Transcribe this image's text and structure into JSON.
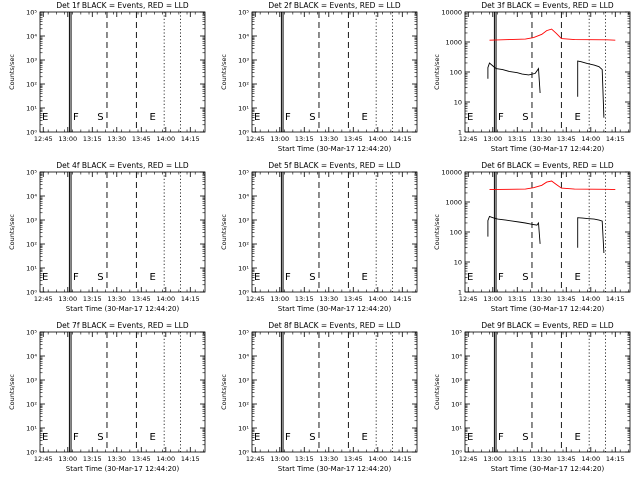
{
  "chart_data": [
    {
      "type": "line",
      "title": "Det 1f BLACK = Events, RED = LLD",
      "xlabel": "",
      "ylabel": "Counts/sec",
      "ylog": true,
      "yticks": [
        "10⁰",
        "10¹",
        "10²",
        "10³",
        "10⁴",
        "10⁵"
      ],
      "xticks": [
        "12:45",
        "13:00",
        "13:15",
        "13:30",
        "13:45",
        "14:00",
        "14:15"
      ],
      "event_labels": {
        "E_left": "E",
        "F": "F",
        "S": "S",
        "E_right": "E"
      },
      "series": []
    },
    {
      "type": "line",
      "title": "Det 2f BLACK = Events, RED = LLD",
      "xlabel": "Start Time (30-Mar-17 12:44:20)",
      "ylabel": "Counts/sec",
      "ylog": true,
      "yticks": [
        "10⁰",
        "10¹",
        "10²",
        "10³",
        "10⁴",
        "10⁵"
      ],
      "xticks": [
        "12:45",
        "13:00",
        "13:15",
        "13:30",
        "13:45",
        "14:00",
        "14:15"
      ],
      "event_labels": {
        "E_left": "E",
        "F": "F",
        "S": "S",
        "E_right": "E"
      },
      "series": []
    },
    {
      "type": "line",
      "title": "Det 3f BLACK = Events, RED = LLD",
      "xlabel": "Start Time (30-Mar-17 12:44:20)",
      "ylabel": "Counts/sec",
      "ylog": true,
      "yticks": [
        "1",
        "10",
        "100",
        "1000",
        "10000"
      ],
      "xticks": [
        "12:45",
        "13:00",
        "13:15",
        "13:30",
        "13:45",
        "14:00",
        "14:15"
      ],
      "event_labels": {
        "E_left": "E",
        "F": "F",
        "S": "S",
        "E_right": "E"
      },
      "series": [
        {
          "color": "#ff0000",
          "segments": [
            [
              [
                "12:58",
                1150
              ],
              [
                "13:10",
                1200
              ],
              [
                "13:20",
                1250
              ],
              [
                "13:25",
                1400
              ],
              [
                "13:30",
                1800
              ],
              [
                "13:33",
                2400
              ],
              [
                "13:36",
                2700
              ],
              [
                "13:39",
                1900
              ],
              [
                "13:42",
                1300
              ],
              [
                "13:50",
                1200
              ],
              [
                "14:10",
                1180
              ],
              [
                "14:15",
                1150
              ]
            ]
          ]
        },
        {
          "color": "#000000",
          "segments": [
            [
              [
                "12:57",
                60
              ],
              [
                "12:57",
                140
              ],
              [
                "12:58",
                200
              ],
              [
                "13:00",
                160
              ],
              [
                "13:02",
                130
              ],
              [
                "13:06",
                120
              ],
              [
                "13:10",
                105
              ],
              [
                "13:15",
                95
              ],
              [
                "13:18",
                85
              ],
              [
                "13:22",
                80
              ],
              [
                "13:26",
                90
              ],
              [
                "13:28",
                130
              ],
              [
                "13:29",
                20
              ]
            ],
            [
              [
                "13:52",
                15
              ],
              [
                "13:52",
                230
              ],
              [
                "13:54",
                220
              ],
              [
                "13:58",
                190
              ],
              [
                "14:02",
                170
              ],
              [
                "14:05",
                150
              ],
              [
                "14:07",
                120
              ],
              [
                "14:08",
                3
              ]
            ]
          ]
        }
      ]
    },
    {
      "type": "line",
      "title": "Det 4f BLACK = Events, RED = LLD",
      "xlabel": "Start Time (30-Mar-17 12:44:20)",
      "ylabel": "Counts/sec",
      "ylog": true,
      "yticks": [
        "10⁰",
        "10¹",
        "10²",
        "10³",
        "10⁴",
        "10⁵"
      ],
      "xticks": [
        "12:45",
        "13:00",
        "13:15",
        "13:30",
        "13:45",
        "14:00",
        "14:15"
      ],
      "event_labels": {
        "E_left": "E",
        "F": "F",
        "S": "S",
        "E_right": "E"
      },
      "series": []
    },
    {
      "type": "line",
      "title": "Det 5f BLACK = Events, RED = LLD",
      "xlabel": "Start Time (30-Mar-17 12:44:20)",
      "ylabel": "Counts/sec",
      "ylog": true,
      "yticks": [
        "10⁰",
        "10¹",
        "10²",
        "10³",
        "10⁴",
        "10⁵"
      ],
      "xticks": [
        "12:45",
        "13:00",
        "13:15",
        "13:30",
        "13:45",
        "14:00",
        "14:15"
      ],
      "event_labels": {
        "E_left": "E",
        "F": "F",
        "S": "S",
        "E_right": "E"
      },
      "series": []
    },
    {
      "type": "line",
      "title": "Det 6f BLACK = Events, RED = LLD",
      "xlabel": "Start Time (30-Mar-17 12:44:20)",
      "ylabel": "Counts/sec",
      "ylog": true,
      "yticks": [
        "1",
        "10",
        "100",
        "1000",
        "10000"
      ],
      "xticks": [
        "12:45",
        "13:00",
        "13:15",
        "13:30",
        "13:45",
        "14:00",
        "14:15"
      ],
      "event_labels": {
        "E_left": "E",
        "F": "F",
        "S": "S",
        "E_right": "E"
      },
      "series": [
        {
          "color": "#ff0000",
          "segments": [
            [
              [
                "12:58",
                2600
              ],
              [
                "13:10",
                2650
              ],
              [
                "13:20",
                2700
              ],
              [
                "13:25",
                3000
              ],
              [
                "13:30",
                3600
              ],
              [
                "13:33",
                4600
              ],
              [
                "13:36",
                5000
              ],
              [
                "13:39",
                3800
              ],
              [
                "13:42",
                2900
              ],
              [
                "13:50",
                2700
              ],
              [
                "14:10",
                2650
              ],
              [
                "14:15",
                2600
              ]
            ]
          ]
        },
        {
          "color": "#000000",
          "segments": [
            [
              [
                "12:57",
                70
              ],
              [
                "12:57",
                240
              ],
              [
                "12:58",
                330
              ],
              [
                "13:00",
                300
              ],
              [
                "13:03",
                270
              ],
              [
                "13:08",
                250
              ],
              [
                "13:12",
                230
              ],
              [
                "13:16",
                215
              ],
              [
                "13:20",
                200
              ],
              [
                "13:24",
                180
              ],
              [
                "13:27",
                170
              ],
              [
                "13:28",
                200
              ],
              [
                "13:29",
                40
              ]
            ],
            [
              [
                "13:52",
                30
              ],
              [
                "13:52",
                300
              ],
              [
                "13:55",
                290
              ],
              [
                "13:58",
                280
              ],
              [
                "14:02",
                270
              ],
              [
                "14:05",
                250
              ],
              [
                "14:07",
                230
              ],
              [
                "14:08",
                20
              ]
            ]
          ]
        }
      ]
    },
    {
      "type": "line",
      "title": "Det 7f BLACK = Events, RED = LLD",
      "xlabel": "Start Time (30-Mar-17 12:44:20)",
      "ylabel": "Counts/sec",
      "ylog": true,
      "yticks": [
        "10⁰",
        "10¹",
        "10²",
        "10³",
        "10⁴",
        "10⁵"
      ],
      "xticks": [
        "12:45",
        "13:00",
        "13:15",
        "13:30",
        "13:45",
        "14:00",
        "14:15"
      ],
      "event_labels": {
        "E_left": "E",
        "F": "F",
        "S": "S",
        "E_right": "E"
      },
      "series": []
    },
    {
      "type": "line",
      "title": "Det 8f BLACK = Events, RED = LLD",
      "xlabel": "Start Time (30-Mar-17 12:44:20)",
      "ylabel": "Counts/sec",
      "ylog": true,
      "yticks": [
        "10⁰",
        "10¹",
        "10²",
        "10³",
        "10⁴",
        "10⁵"
      ],
      "xticks": [
        "12:45",
        "13:00",
        "13:15",
        "13:30",
        "13:45",
        "14:00",
        "14:15"
      ],
      "event_labels": {
        "E_left": "E",
        "F": "F",
        "S": "S",
        "E_right": "E"
      },
      "series": []
    },
    {
      "type": "line",
      "title": "Det 9f BLACK = Events, RED = LLD",
      "xlabel": "Start Time (30-Mar-17 12:44:20)",
      "ylabel": "Counts/sec",
      "ylog": true,
      "yticks": [
        "10⁰",
        "10¹",
        "10²",
        "10³",
        "10⁴",
        "10⁵"
      ],
      "xticks": [
        "12:45",
        "13:00",
        "13:15",
        "13:30",
        "13:45",
        "14:00",
        "14:15"
      ],
      "event_labels": {
        "E_left": "E",
        "F": "F",
        "S": "S",
        "E_right": "E"
      },
      "series": []
    }
  ]
}
